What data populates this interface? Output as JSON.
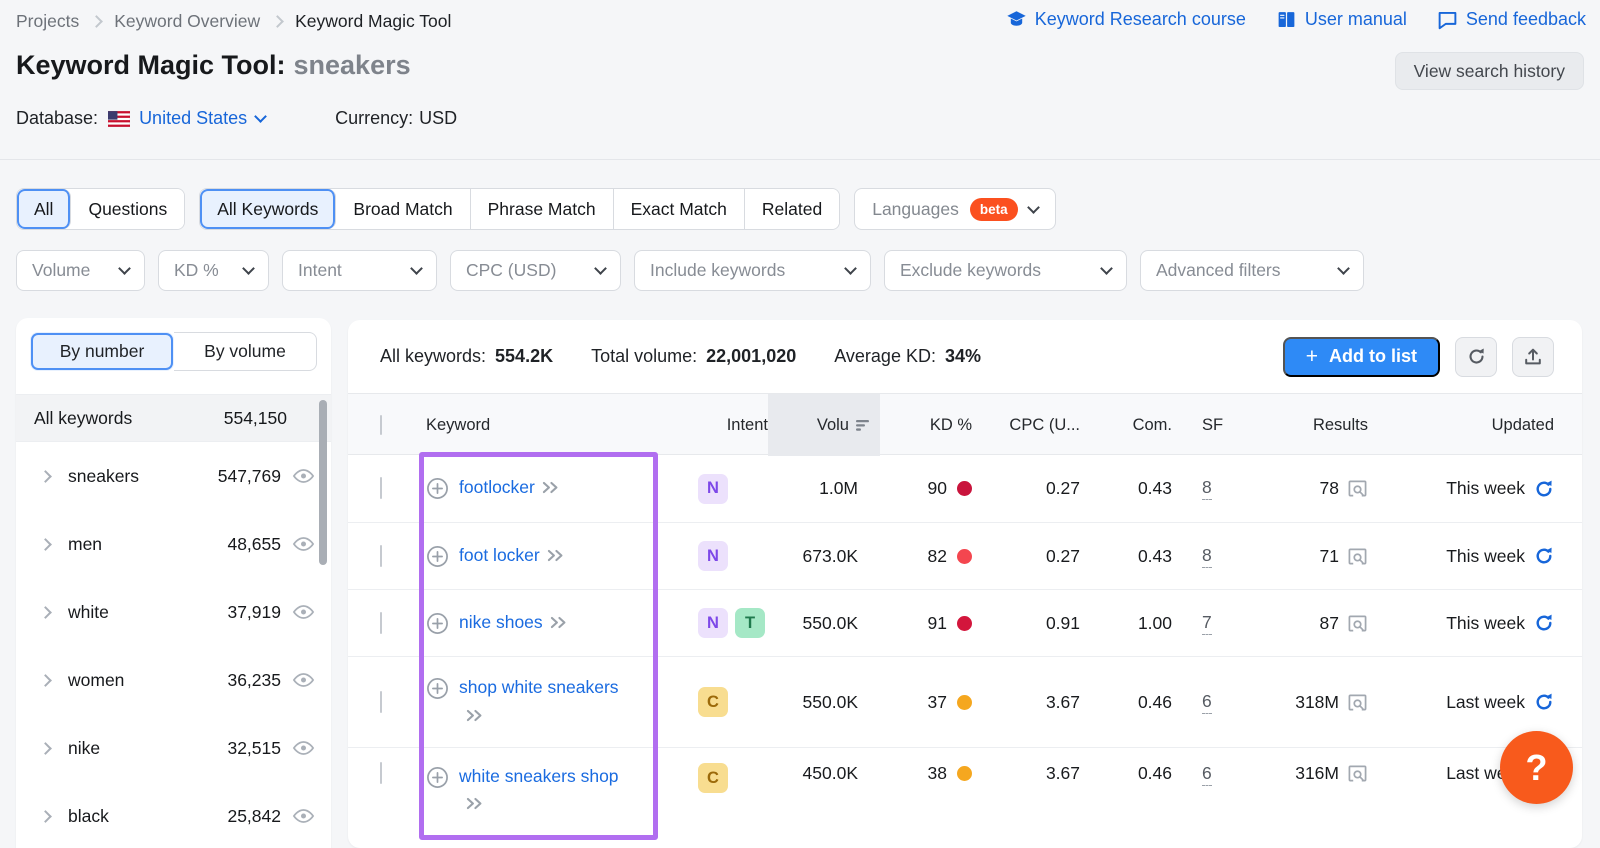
{
  "breadcrumb": [
    "Projects",
    "Keyword Overview",
    "Keyword Magic Tool"
  ],
  "header_links": [
    {
      "label": "Keyword Research course",
      "icon": "academy-cap"
    },
    {
      "label": "User manual",
      "icon": "book"
    },
    {
      "label": "Send feedback",
      "icon": "feedback-bubble"
    }
  ],
  "title": {
    "main": "Keyword Magic Tool:",
    "query": "sneakers"
  },
  "view_search_history": "View search history",
  "database": {
    "label": "Database:",
    "value": "United States",
    "flag_icon": "us-flag"
  },
  "currency": {
    "label": "Currency:",
    "value": "USD"
  },
  "match_tabs": {
    "group_all": [
      {
        "label": "All",
        "selected": true
      },
      {
        "label": "Questions",
        "selected": false
      }
    ],
    "group_match": [
      {
        "label": "All Keywords",
        "selected": true
      },
      {
        "label": "Broad Match",
        "selected": false
      },
      {
        "label": "Phrase Match",
        "selected": false
      },
      {
        "label": "Exact Match",
        "selected": false
      },
      {
        "label": "Related",
        "selected": false
      }
    ],
    "languages": {
      "label": "Languages",
      "badge": "beta"
    }
  },
  "filters": [
    {
      "label": "Volume"
    },
    {
      "label": "KD %"
    },
    {
      "label": "Intent"
    },
    {
      "label": "CPC (USD)"
    },
    {
      "label": "Include keywords"
    },
    {
      "label": "Exclude keywords"
    },
    {
      "label": "Advanced filters"
    }
  ],
  "sidebar": {
    "tabs": [
      {
        "label": "By number",
        "selected": true
      },
      {
        "label": "By volume",
        "selected": false
      }
    ],
    "all_keywords": {
      "label": "All keywords",
      "count": "554,150"
    },
    "groups": [
      {
        "label": "sneakers",
        "count": "547,769"
      },
      {
        "label": "men",
        "count": "48,655"
      },
      {
        "label": "white",
        "count": "37,919"
      },
      {
        "label": "women",
        "count": "36,235"
      },
      {
        "label": "nike",
        "count": "32,515"
      },
      {
        "label": "black",
        "count": "25,842"
      }
    ]
  },
  "summary": {
    "all_keywords_label": "All keywords:",
    "all_keywords_value": "554.2K",
    "total_volume_label": "Total volume:",
    "total_volume_value": "22,001,020",
    "average_kd_label": "Average KD:",
    "average_kd_value": "34%"
  },
  "actions": {
    "add_to_list": "Add to list",
    "plus_glyph": "+"
  },
  "table": {
    "columns": {
      "keyword": "Keyword",
      "intent": "Intent",
      "volume": "Volu",
      "kd": "KD %",
      "cpc": "CPC (U...",
      "com": "Com.",
      "sf": "SF",
      "results": "Results",
      "updated": "Updated"
    },
    "rows": [
      {
        "keyword": "footlocker",
        "intents": [
          "N"
        ],
        "volume": "1.0M",
        "kd": "90",
        "kd_color": "#c9143c",
        "cpc": "0.27",
        "com": "0.43",
        "sf": "8",
        "results": "78",
        "updated": "This week"
      },
      {
        "keyword": "foot locker",
        "intents": [
          "N"
        ],
        "volume": "673.0K",
        "kd": "82",
        "kd_color": "#f4464f",
        "cpc": "0.27",
        "com": "0.43",
        "sf": "8",
        "results": "71",
        "updated": "This week"
      },
      {
        "keyword": "nike shoes",
        "intents": [
          "N",
          "T"
        ],
        "volume": "550.0K",
        "kd": "91",
        "kd_color": "#d3163c",
        "cpc": "0.91",
        "com": "1.00",
        "sf": "7",
        "results": "87",
        "updated": "This week"
      },
      {
        "keyword": "shop white sneakers",
        "intents": [
          "C"
        ],
        "volume": "550.0K",
        "kd": "37",
        "kd_color": "#f5a71f",
        "cpc": "3.67",
        "com": "0.46",
        "sf": "6",
        "results": "318M",
        "updated": "Last week"
      },
      {
        "keyword": "white sneakers shop",
        "intents": [
          "C"
        ],
        "volume": "450.0K",
        "kd": "38",
        "kd_color": "#f5a71f",
        "cpc": "3.67",
        "com": "0.46",
        "sf": "6",
        "results": "316M",
        "updated": "Last week"
      }
    ]
  },
  "annotation": {
    "highlight_color": "#b16ef0"
  },
  "help_button": {
    "label": "?"
  },
  "icons": {
    "academy-cap": "graduation cap",
    "book": "open book",
    "feedback-bubble": "speech bubble",
    "us-flag": "united states flag",
    "plus-circle": "add keyword",
    "double-chevron": "open in analyzer",
    "eye": "exclude/view",
    "serp": "view SERP",
    "refresh-blue": "refresh metric",
    "refresh-gray": "refresh table",
    "upload": "export",
    "sort-desc": "sorted descending"
  }
}
